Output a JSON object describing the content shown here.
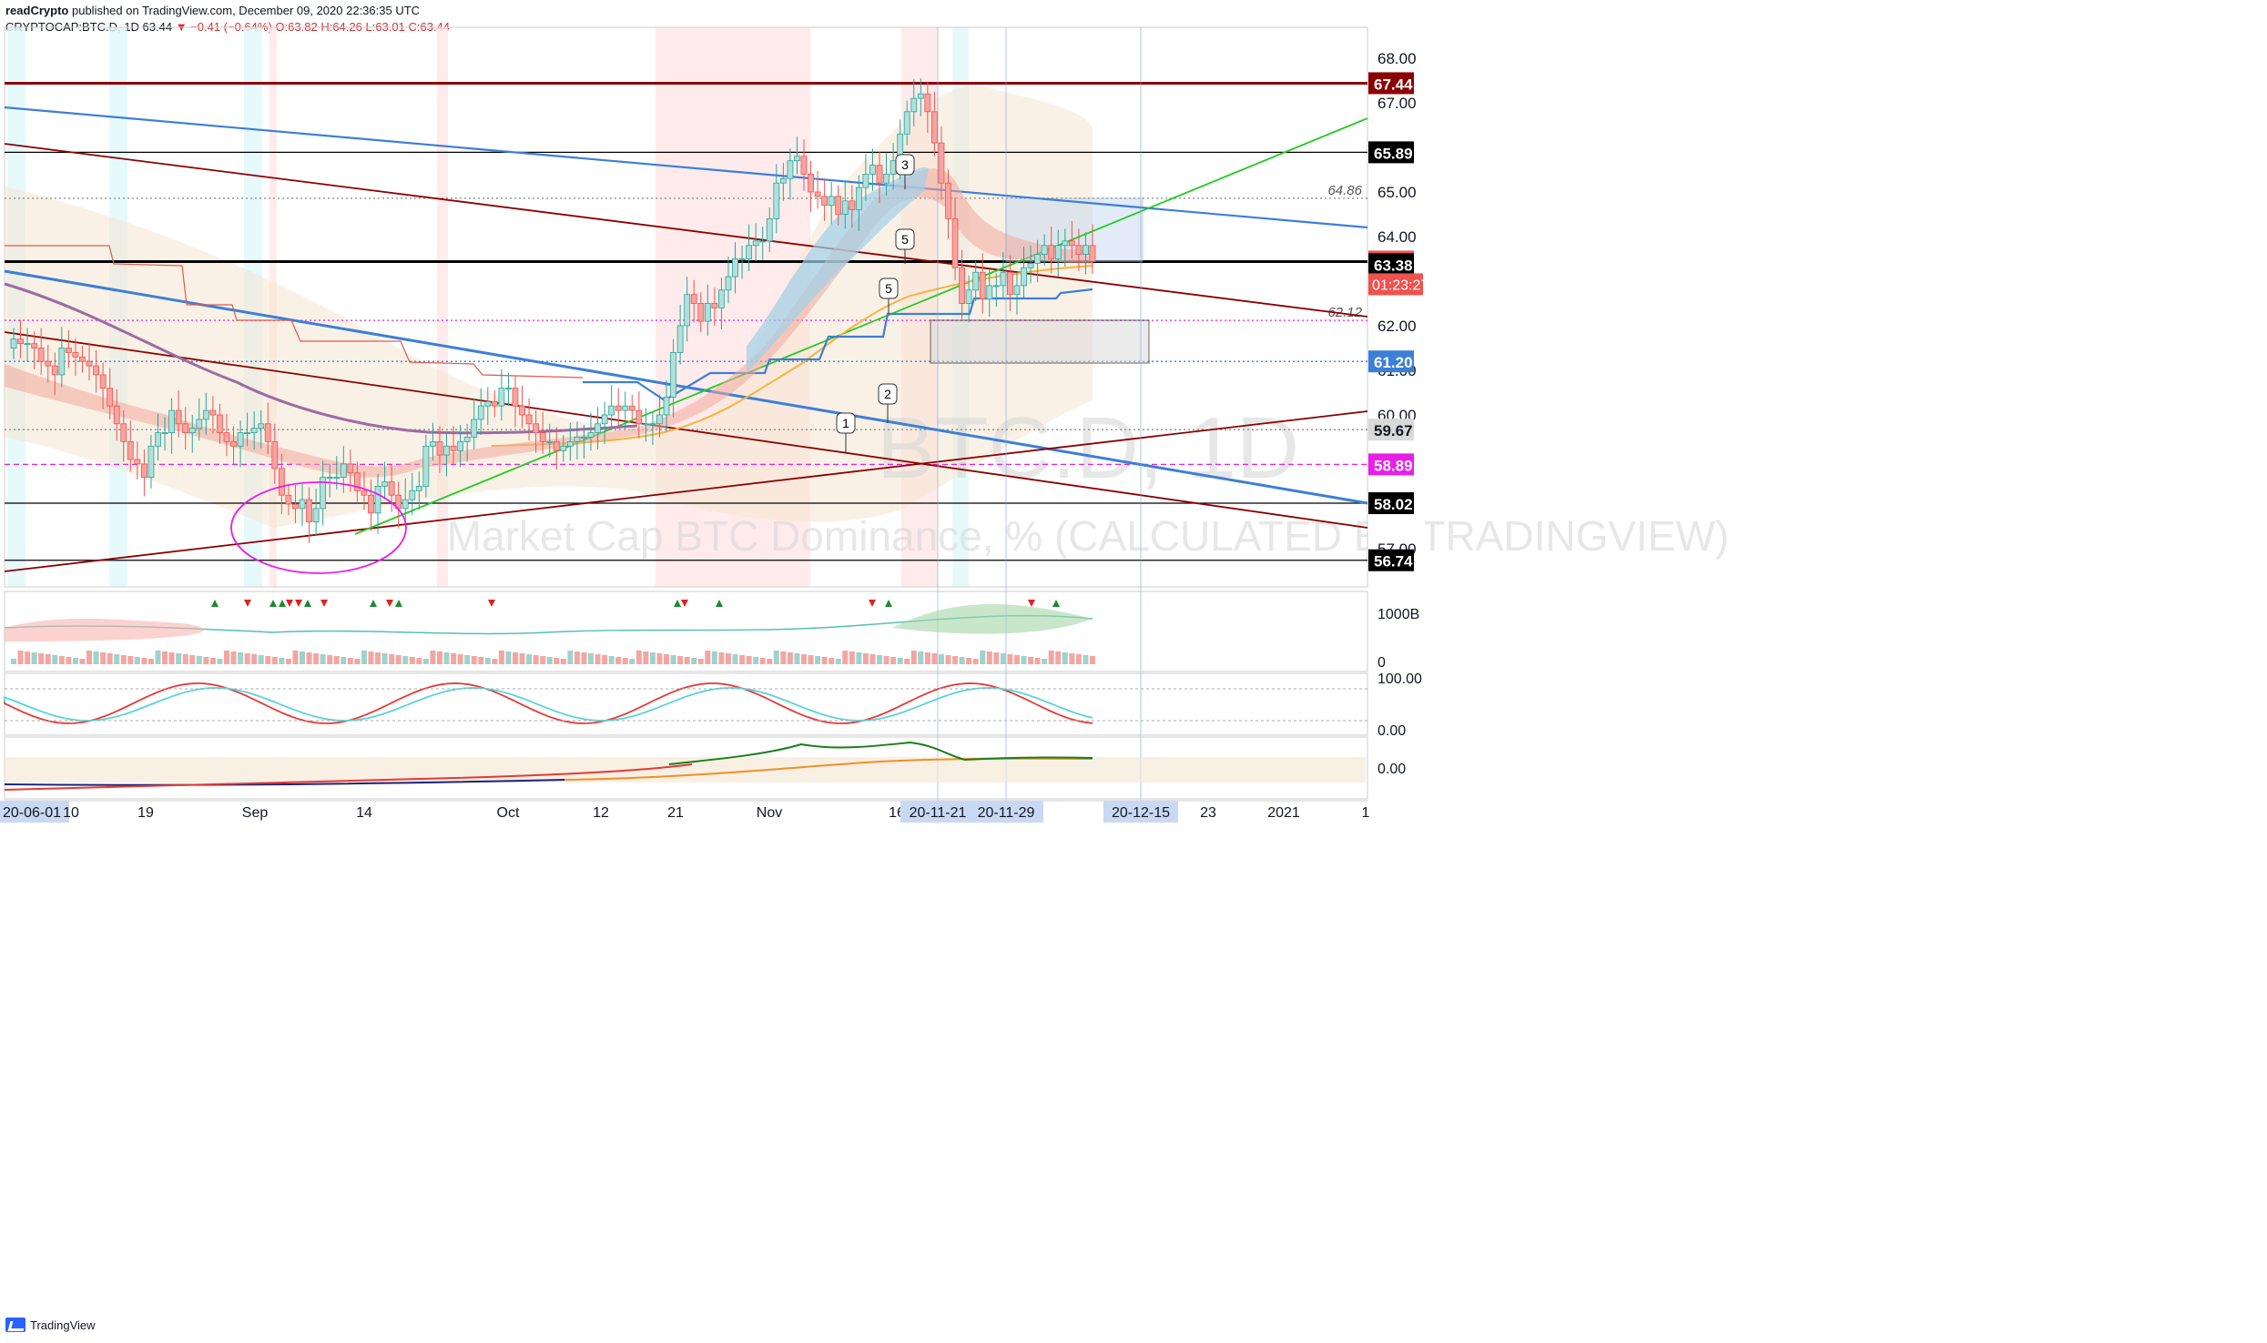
{
  "header": {
    "publisher": "readCrypto",
    "published_text": "published on TradingView.com, December 09, 2020 22:36:35 UTC",
    "symbol": "CRYPTOCAP:BTC.D, 1D",
    "last": "63.44",
    "change": "▼ −0.41 (−0.64%)",
    "o": "O:63.82",
    "h": "H:64.26",
    "l": "L:63.01",
    "c": "C:63.44"
  },
  "watermark": {
    "ticker": "BTC.D, 1D",
    "description": "Market Cap BTC Dominance, % (CALCULATED BY TRADINGVIEW)"
  },
  "footer": {
    "logo_text": "TradingView"
  },
  "colors": {
    "up": "#26a69a",
    "down": "#ef5350",
    "price_line": "#000000",
    "resistance": "#8b0000",
    "trend_blue": "#3c7fd6",
    "trend_green": "#22cc22",
    "magenta": "#e91ee9",
    "ma_purple": "#9c6ba3",
    "ma_orange": "#f7b33b"
  },
  "chart_data": [
    {
      "type": "candlestick",
      "title": "",
      "y_axis_ticks": [
        "68.00",
        "67.00",
        "65.00",
        "64.00",
        "62.00",
        "61.00",
        "60.00",
        "57.00"
      ],
      "x_axis_ticks": [
        "20-06-01",
        "10",
        "19",
        "Sep",
        "14",
        "Oct",
        "12",
        "21",
        "Nov",
        "16",
        "20-11-21",
        "20-11-29",
        "20-12-15",
        "23",
        "2021",
        "1"
      ],
      "ylim": [
        56.2,
        68.6
      ],
      "price_labels": [
        {
          "value": 67.44,
          "text": "67.44",
          "color": "#8b0000"
        },
        {
          "value": 65.89,
          "text": "65.89",
          "color": "#000000"
        },
        {
          "value": 63.44,
          "text": "63.44",
          "color": "#ef5350"
        },
        {
          "value": 63.38,
          "text": "63.38",
          "color": "#000000"
        },
        {
          "value": 61.2,
          "text": "61.20",
          "color": "#3c7fd6"
        },
        {
          "value": 59.67,
          "text": "59.67",
          "color": "#d9d9d9"
        },
        {
          "value": 58.89,
          "text": "58.89",
          "color": "#e91ee9"
        },
        {
          "value": 58.02,
          "text": "58.02",
          "color": "#000000"
        },
        {
          "value": 56.74,
          "text": "56.74",
          "color": "#000000"
        }
      ],
      "countdown": "01:23:27",
      "horizontal_levels": [
        {
          "value": 67.44,
          "style": "solid",
          "color": "#8b0000"
        },
        {
          "value": 65.89,
          "style": "solid",
          "color": "#000000"
        },
        {
          "value": 64.86,
          "style": "dotted",
          "color": "#888888",
          "text": "64.86"
        },
        {
          "value": 63.44,
          "style": "solid-thick",
          "color": "#000000"
        },
        {
          "value": 62.12,
          "style": "dotted",
          "color": "#e91ee9",
          "text": "62.12"
        },
        {
          "value": 61.2,
          "style": "dotted",
          "color": "#3c7fd6"
        },
        {
          "value": 59.67,
          "style": "dotted",
          "color": "#888888"
        },
        {
          "value": 58.89,
          "style": "dashed",
          "color": "#e91ee9"
        },
        {
          "value": 58.02,
          "style": "solid",
          "color": "#000000"
        },
        {
          "value": 56.74,
          "style": "solid",
          "color": "#000000"
        }
      ],
      "series": [
        {
          "name": "",
          "values": [
            61.7,
            61.6,
            61.6,
            61.5,
            61.2,
            61.1,
            60.9,
            61.5,
            61.4,
            61.3,
            61.2,
            61.1,
            60.9,
            60.6,
            60.2,
            59.8,
            59.4,
            59.0,
            58.9,
            58.6,
            59.3,
            59.6,
            59.6,
            60.1,
            59.8,
            59.6,
            59.7,
            59.9,
            60.1,
            60.0,
            59.6,
            59.4,
            59.3,
            59.6,
            59.6,
            59.7,
            59.8,
            59.4,
            58.8,
            58.2,
            58.0,
            57.9,
            58.1,
            57.6,
            57.9,
            58.6,
            58.6,
            58.6,
            58.9,
            58.7,
            58.3,
            58.2,
            57.8,
            58.4,
            58.5,
            58.2,
            57.9,
            58.1,
            58.3,
            58.4,
            59.3,
            59.4,
            59.1,
            59.3,
            59.2,
            59.4,
            59.5,
            59.9,
            60.2,
            60.3,
            60.2,
            60.6,
            60.6,
            60.2,
            60.0,
            59.8,
            59.6,
            59.4,
            59.4,
            59.2,
            59.3,
            59.4,
            59.5,
            59.5,
            59.6,
            59.8,
            60.0,
            60.2,
            60.1,
            60.2,
            60.1,
            59.8,
            59.8,
            59.8,
            60.0,
            60.4,
            61.4,
            62.0,
            62.7,
            62.5,
            62.1,
            62.5,
            62.4,
            62.8,
            63.1,
            63.5,
            63.5,
            63.8,
            63.9,
            63.9,
            64.4,
            65.2,
            65.3,
            65.7,
            65.8,
            65.4,
            65.0,
            64.9,
            64.7,
            64.9,
            64.5,
            64.8,
            64.6,
            65.1,
            65.4,
            65.6,
            65.2,
            65.4,
            65.7,
            66.3,
            66.8,
            67.1,
            67.2,
            66.8,
            66.1,
            65.2,
            64.4,
            63.3,
            62.5,
            62.8,
            63.2,
            62.6,
            62.9,
            62.9,
            63.2,
            62.7,
            62.9,
            63.3,
            63.4,
            63.6,
            63.8,
            63.5,
            63.8,
            63.9,
            63.8,
            63.6,
            63.8,
            63.44
          ]
        }
      ],
      "annotations": [
        "1",
        "2",
        "3",
        "5",
        "5"
      ]
    },
    {
      "type": "area",
      "title": "",
      "y_axis_ticks": [
        "1000B",
        "0"
      ]
    },
    {
      "type": "line",
      "title": "",
      "y_axis_ticks": [
        "100.00",
        "0.00"
      ]
    },
    {
      "type": "line",
      "title": "",
      "y_axis_ticks": [
        "0.00"
      ]
    }
  ]
}
